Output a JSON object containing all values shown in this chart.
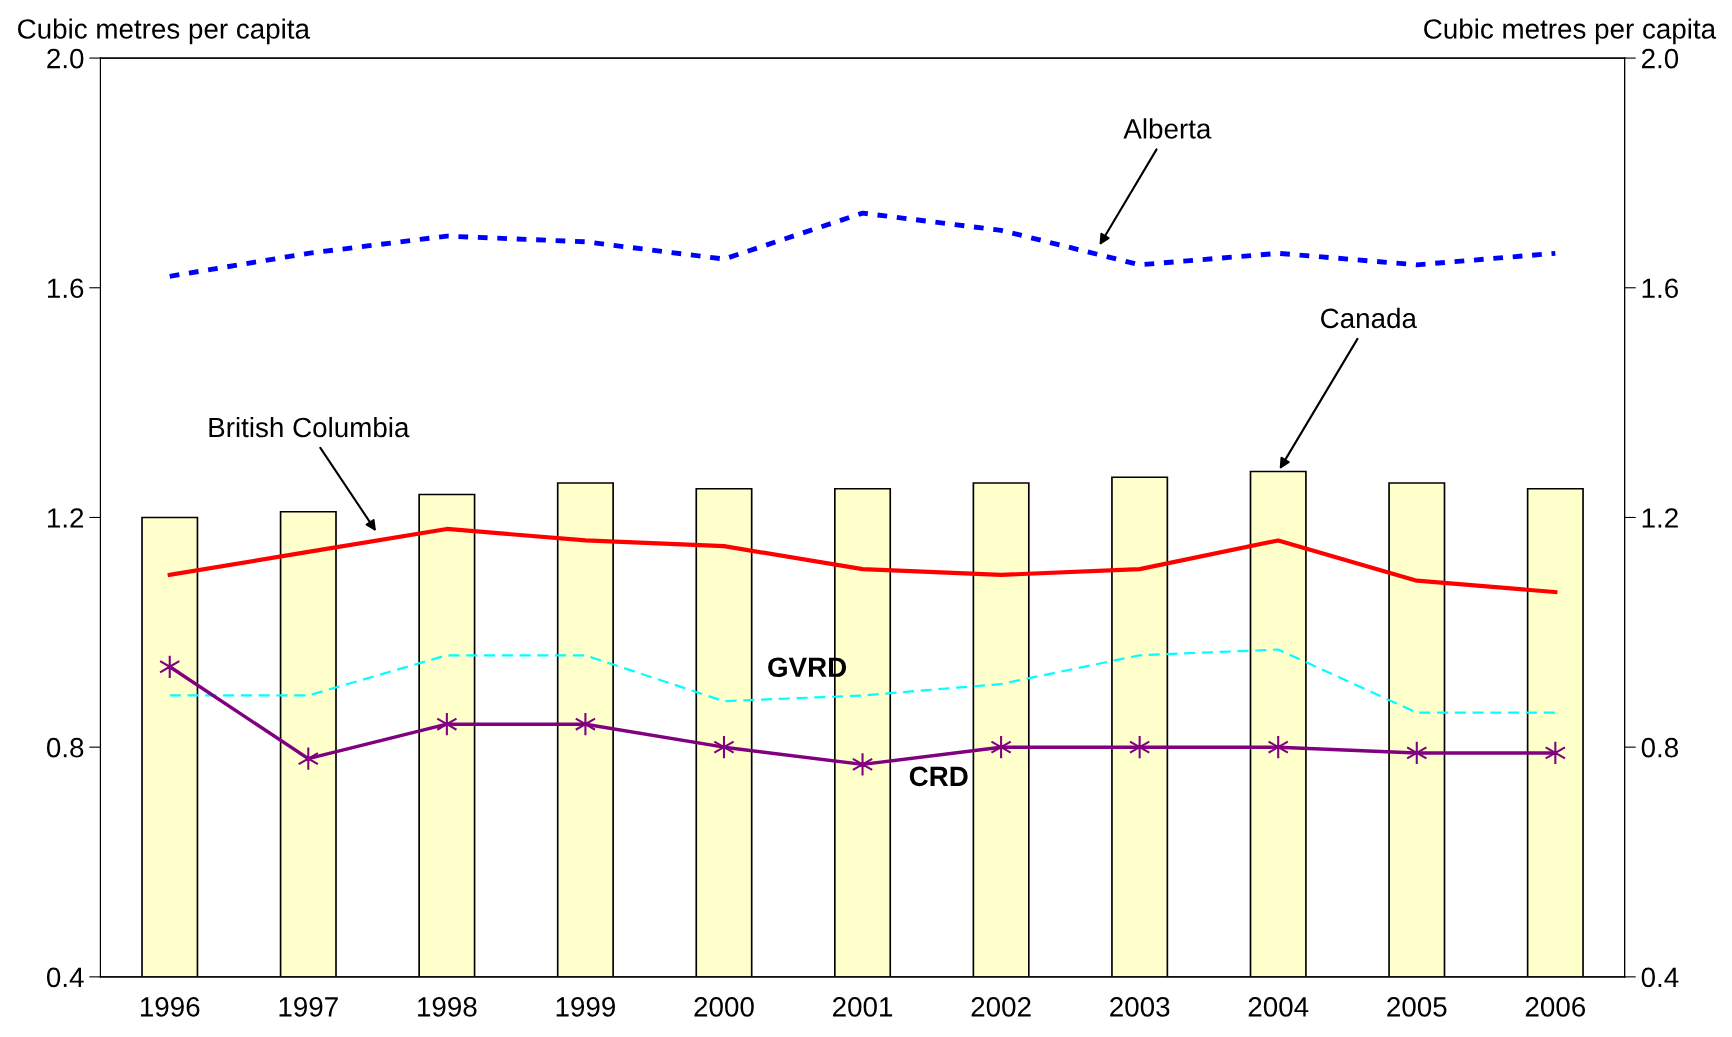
{
  "chart_data": {
    "type": "bar",
    "categories": [
      "1996",
      "1997",
      "1998",
      "1999",
      "2000",
      "2001",
      "2002",
      "2003",
      "2004",
      "2005",
      "2006"
    ],
    "ylabel": "Cubic metres per capita",
    "y2label": "Cubic metres per capita",
    "ylim": [
      0.4,
      2.0
    ],
    "yticks": [
      {
        "value": 0.4,
        "label": "0.4"
      },
      {
        "value": 0.8,
        "label": "0.8"
      },
      {
        "value": 1.2,
        "label": "1.2"
      },
      {
        "value": 1.6,
        "label": "1.6"
      },
      {
        "value": 2.0,
        "label": "2.0"
      }
    ],
    "y2lim": [
      0.4,
      2.0
    ],
    "y2ticks": [
      {
        "value": 0.4,
        "label": "0.4"
      },
      {
        "value": 0.8,
        "label": "0.8"
      },
      {
        "value": 1.2,
        "label": "1.2"
      },
      {
        "value": 1.6,
        "label": "1.6"
      },
      {
        "value": 2.0,
        "label": "2.0"
      }
    ],
    "grid": false,
    "legend": false,
    "series": [
      {
        "name": "Canada",
        "color": "#ffffcc",
        "values": [
          1.2,
          1.21,
          1.24,
          1.26,
          1.25,
          1.25,
          1.26,
          1.27,
          1.28,
          1.26,
          1.25
        ]
      },
      {
        "name": "Alberta",
        "type": "line",
        "color": "#0000ff",
        "line_style": "dotted",
        "marker": "none",
        "values": [
          1.62,
          1.66,
          1.69,
          1.68,
          1.65,
          1.73,
          1.7,
          1.64,
          1.66,
          1.64,
          1.66
        ]
      },
      {
        "name": "British Columbia",
        "type": "line",
        "color": "#ff0000",
        "line_style": "solid",
        "marker": "none",
        "values": [
          1.1,
          1.14,
          1.18,
          1.16,
          1.15,
          1.11,
          1.1,
          1.11,
          1.16,
          1.09,
          1.07
        ]
      },
      {
        "name": "GVRD",
        "type": "line",
        "color": "#00ffff",
        "line_style": "dashed",
        "marker": "none",
        "values": [
          0.89,
          0.89,
          0.96,
          0.96,
          0.88,
          0.89,
          0.91,
          0.96,
          0.97,
          0.86,
          0.86
        ]
      },
      {
        "name": "CRD",
        "type": "line",
        "color": "#800080",
        "line_style": "solid",
        "marker": "cross",
        "values": [
          0.94,
          0.78,
          0.84,
          0.84,
          0.8,
          0.77,
          0.8,
          0.8,
          0.8,
          0.79,
          0.79
        ]
      }
    ]
  }
}
